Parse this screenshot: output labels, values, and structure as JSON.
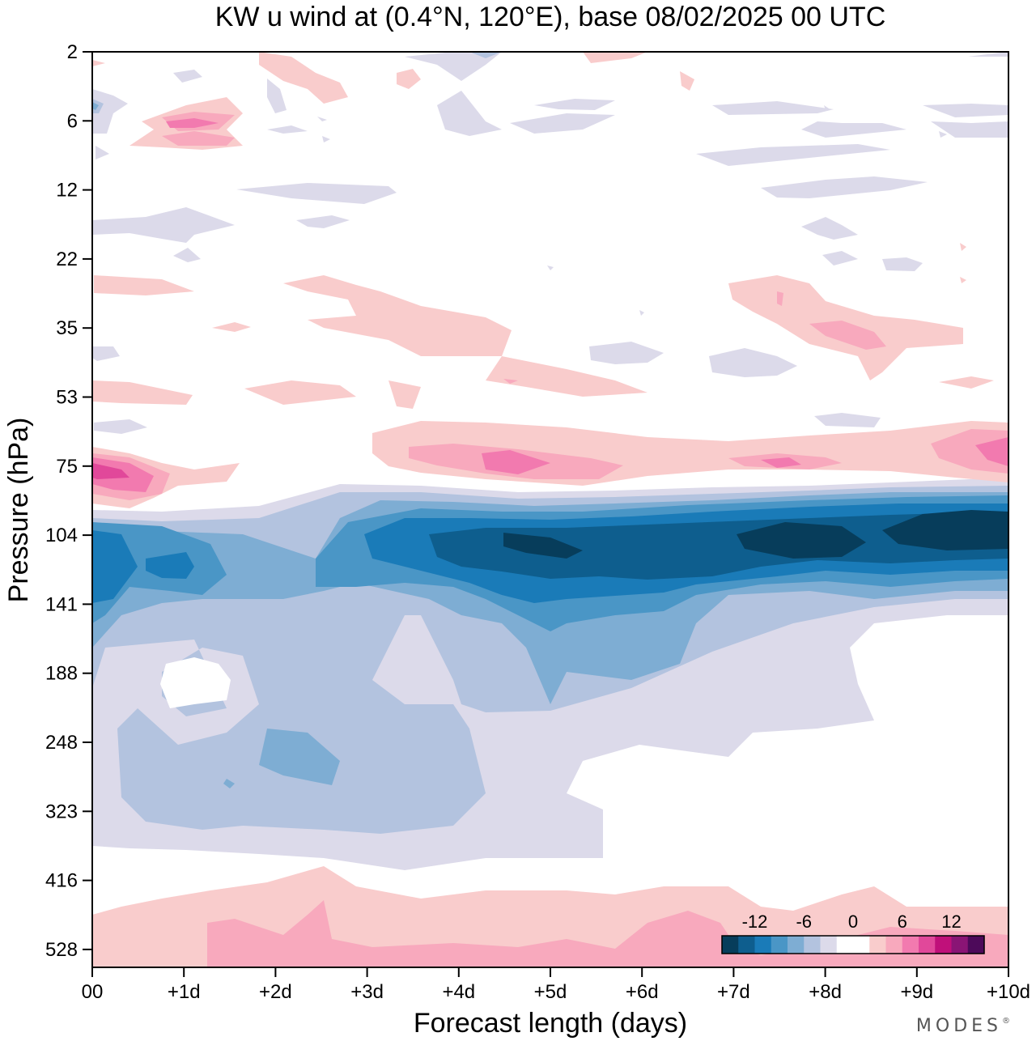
{
  "chart_data": {
    "type": "heatmap",
    "title": "KW u wind at (0.4°N, 120°E),  base 08/02/2025  00 UTC",
    "xlabel": "Forecast length (days)",
    "ylabel": "Pressure (hPa)",
    "x_tick_labels": [
      "00",
      "+1d",
      "+2d",
      "+3d",
      "+4d",
      "+5d",
      "+6d",
      "+7d",
      "+8d",
      "+9d",
      "+10d"
    ],
    "x_range_days": [
      0,
      10
    ],
    "y_tick_labels": [
      "2",
      "6",
      "12",
      "22",
      "35",
      "53",
      "75",
      "104",
      "141",
      "188",
      "248",
      "323",
      "416",
      "528"
    ],
    "y_scale": "log (pressure)",
    "colorbar": {
      "placement": "bottom-right",
      "tick_labels": [
        "-12",
        "-6",
        "0",
        "6",
        "12"
      ],
      "levels": [
        -16,
        -14,
        -12,
        -10,
        -8,
        -6,
        -4,
        -2,
        0,
        2,
        4,
        6,
        8,
        10,
        12,
        14,
        16
      ],
      "colors": [
        "#073d5b",
        "#0e5e8e",
        "#1a7bb8",
        "#4a96c6",
        "#7eadd3",
        "#b3c3df",
        "#dcdaea",
        "#ffffff",
        "#ffffff",
        "#f9cccc",
        "#f8a9bd",
        "#f27aaf",
        "#e1489a",
        "#c0107a",
        "#8a1575",
        "#4d0a5a"
      ]
    },
    "features": [
      {
        "description": "strong easterly core",
        "level_hPa": 104,
        "days": [
          4,
          10
        ],
        "min_u": -16
      },
      {
        "description": "westerly band",
        "level_hPa": 75,
        "days": [
          0,
          10
        ],
        "max_u": 10
      },
      {
        "description": "weak easterly",
        "level_hPa": [
          141,
          416
        ],
        "days": [
          0,
          9.5
        ],
        "u": -4
      },
      {
        "description": "westerly near surface",
        "level_hPa": 528,
        "days": [
          0,
          10
        ],
        "u": 4
      }
    ],
    "grid": false
  },
  "branding": {
    "text": "MODES",
    "mark": "®"
  }
}
